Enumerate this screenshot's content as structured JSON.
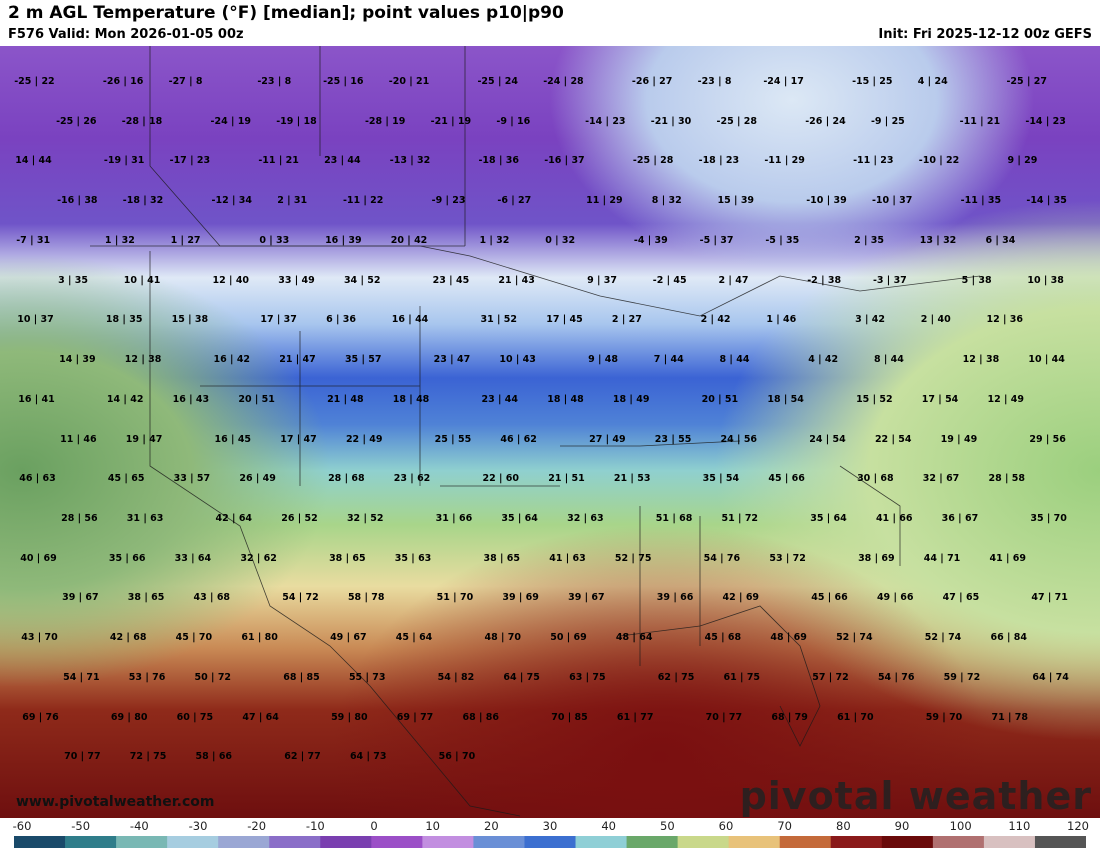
{
  "header": {
    "title": "2 m AGL Temperature (°F) [median]; point values p10|p90",
    "valid": "F576 Valid: Mon 2026-01-05 00z",
    "init": "Init: Fri 2025-12-12 00z GEFS"
  },
  "footer": {
    "website": "www.pivotalweather.com",
    "logo": "pivotal weather"
  },
  "colorbar": {
    "labels": [
      "-60",
      "-50",
      "-40",
      "-30",
      "-20",
      "-10",
      "0",
      "10",
      "20",
      "30",
      "40",
      "50",
      "60",
      "70",
      "80",
      "90",
      "100",
      "110",
      "120"
    ],
    "colors": [
      "#1a4a6a",
      "#2f7d8a",
      "#79b8b4",
      "#a6cde0",
      "#9aa7d4",
      "#8a6ec8",
      "#7a3fb0",
      "#9b4fc7",
      "#c28ee0",
      "#6a8fd6",
      "#3c6fd0",
      "#8fcfd6",
      "#6aa86a",
      "#c9d88a",
      "#e8c27a",
      "#c46a3a",
      "#8a1a1a",
      "#6a0a0a",
      "#b07070",
      "#d8c0c0",
      "#555555"
    ]
  },
  "points": [
    "-25|22",
    "-26|16",
    "-27|8",
    "-23|8",
    "-25|16",
    "-20|21",
    "-25|24",
    "-24|28",
    "-26|27",
    "-23|8",
    "-24|17",
    "-15|25",
    "4|24",
    "-25|27",
    "-25|26",
    "-28|18",
    "-24|19",
    "-19|18",
    "-28|19",
    "-21|19",
    "-9|16",
    "-14|23",
    "-21|30",
    "-25|28",
    "-26|24",
    "-9|25",
    "-11|21",
    "-14|23",
    "14|44",
    "-19|31",
    "-17|23",
    "-11|21",
    "23|44",
    "-13|32",
    "-18|36",
    "-16|37",
    "-25|28",
    "-18|23",
    "-11|29",
    "-11|23",
    "-10|22",
    "9|29",
    "-16|38",
    "-18|32",
    "-12|34",
    "2|31",
    "-11|22",
    "-9|23",
    "-6|27",
    "11|29",
    "8|32",
    "15|39",
    "-10|39",
    "-10|37",
    "-11|35",
    "-14|35",
    "-7|31",
    "1|32",
    "1|27",
    "0|33",
    "16|39",
    "20|42",
    "1|32",
    "0|32",
    "-4|39",
    "-5|37",
    "-5|35",
    "2|35",
    "13|32",
    "6|34",
    "3|35",
    "10|41",
    "12|40",
    "33|49",
    "34|52",
    "23|45",
    "21|43",
    "9|37",
    "-2|45",
    "2|47",
    "-2|38",
    "-3|37",
    "5|38",
    "10|38",
    "10|37",
    "18|35",
    "15|38",
    "17|37",
    "6|36",
    "16|44",
    "31|52",
    "17|45",
    "2|27",
    "2|42",
    "1|46",
    "3|42",
    "2|40",
    "12|36",
    "14|39",
    "12|38",
    "16|42",
    "21|47",
    "35|57",
    "23|47",
    "10|43",
    "9|48",
    "7|44",
    "8|44",
    "4|42",
    "8|44",
    "12|38",
    "10|44",
    "16|41",
    "14|42",
    "16|43",
    "20|51",
    "21|48",
    "18|48",
    "23|44",
    "18|48",
    "18|49",
    "20|51",
    "18|54",
    "15|52",
    "17|54",
    "12|49",
    "11|46",
    "19|47",
    "16|45",
    "17|47",
    "22|49",
    "25|55",
    "46|62",
    "27|49",
    "23|55",
    "24|56",
    "24|54",
    "22|54",
    "19|49",
    "29|56",
    "46|63",
    "45|65",
    "33|57",
    "26|49",
    "28|68",
    "23|62",
    "22|60",
    "21|51",
    "21|53",
    "35|54",
    "45|66",
    "30|68",
    "32|67",
    "28|58",
    "28|56",
    "31|63",
    "42|64",
    "26|52",
    "32|52",
    "31|66",
    "35|64",
    "32|63",
    "51|68",
    "51|72",
    "35|64",
    "41|66",
    "36|67",
    "35|70",
    "40|69",
    "35|66",
    "33|64",
    "32|62",
    "38|65",
    "35|63",
    "38|65",
    "41|63",
    "52|75",
    "54|76",
    "53|72",
    "38|69",
    "44|71",
    "41|69",
    "39|67",
    "38|65",
    "43|68",
    "54|72",
    "58|78",
    "51|70",
    "39|69",
    "39|67",
    "39|66",
    "42|69",
    "45|66",
    "49|66",
    "47|65",
    "47|71",
    "43|70",
    "42|68",
    "45|70",
    "61|80",
    "49|67",
    "45|64",
    "48|70",
    "50|69",
    "48|64",
    "45|68",
    "48|69",
    "52|74",
    "52|74",
    "66|84",
    "54|71",
    "53|76",
    "50|72",
    "68|85",
    "55|73",
    "54|82",
    "64|75",
    "63|75",
    "62|75",
    "61|75",
    "57|72",
    "54|76",
    "59|72",
    "64|74",
    "69|76",
    "69|80",
    "60|75",
    "47|64",
    "59|80",
    "69|77",
    "68|86",
    "70|85",
    "61|77",
    "70|77",
    "68|79",
    "61|70",
    "59|70",
    "71|78",
    "70|77",
    "72|75",
    "58|66",
    "62|77",
    "64|73",
    "56|70"
  ]
}
